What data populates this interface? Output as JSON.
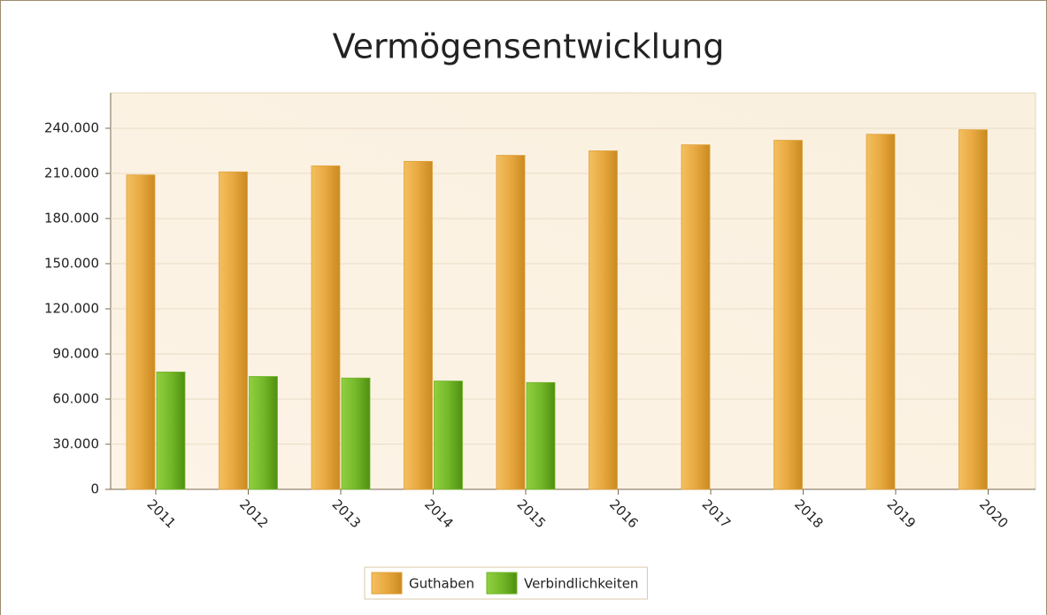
{
  "chart_data": {
    "type": "bar",
    "title": "Vermögensentwicklung",
    "categories": [
      "2011",
      "2012",
      "2013",
      "2014",
      "2015",
      "2016",
      "2017",
      "2018",
      "2019",
      "2020"
    ],
    "series": [
      {
        "name": "Guthaben",
        "color": "#e0a038",
        "values": [
          209000,
          211000,
          215000,
          218000,
          222000,
          225000,
          229000,
          232000,
          236000,
          239000
        ]
      },
      {
        "name": "Verbindlichkeiten",
        "color": "#6fb428",
        "values": [
          78000,
          75000,
          74000,
          72000,
          71000,
          null,
          null,
          null,
          null,
          null
        ]
      }
    ],
    "ylim": [
      0,
      263500
    ],
    "yticks": [
      {
        "value": 0,
        "label": "0"
      },
      {
        "value": 30000,
        "label": "30.000"
      },
      {
        "value": 60000,
        "label": "60.000"
      },
      {
        "value": 90000,
        "label": "90.000"
      },
      {
        "value": 120000,
        "label": "120.000"
      },
      {
        "value": 150000,
        "label": "150.000"
      },
      {
        "value": 180000,
        "label": "180.000"
      },
      {
        "value": 210000,
        "label": "210.000"
      },
      {
        "value": 240000,
        "label": "240.000"
      }
    ],
    "grid": true,
    "legend": "bottom"
  }
}
